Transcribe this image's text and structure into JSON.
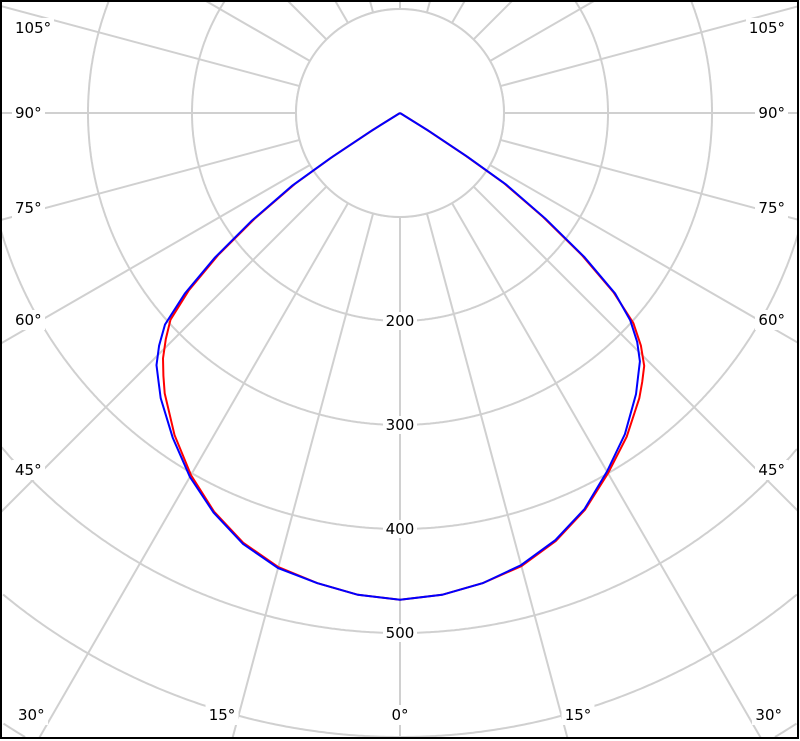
{
  "chart_data": {
    "type": "polar",
    "angle_unit": "degrees",
    "angle_ticks": [
      0,
      15,
      30,
      45,
      60,
      75,
      90,
      105
    ],
    "angle_tick_labels": [
      "0°",
      "15°",
      "30°",
      "45°",
      "60°",
      "75°",
      "90°",
      "105°"
    ],
    "radial_ticks": [
      200,
      300,
      400,
      500
    ],
    "radial_tick_labels": [
      "200",
      "300",
      "400",
      "500"
    ],
    "radial_grid": [
      100,
      200,
      300,
      400,
      500,
      600,
      700,
      800
    ],
    "grid": true,
    "grid_color": "#d0d0d0",
    "series": [
      {
        "color": "#ff0000",
        "gamma": [
          -90,
          -60,
          -58,
          -57,
          -56,
          -54,
          -52,
          -50,
          -48,
          -46,
          -44,
          -42,
          -40,
          -35,
          -30,
          -25,
          -20,
          -15,
          -10,
          -5,
          0,
          5,
          10,
          15,
          20,
          25,
          30,
          35,
          40,
          42,
          44,
          46,
          48,
          50,
          52,
          54,
          56,
          57,
          58,
          60,
          90
        ],
        "values": [
          0,
          0,
          30,
          75,
          120,
          170,
          222,
          268,
          302,
          322,
          338,
          348,
          358,
          380,
          400,
          421,
          438,
          451,
          459,
          465,
          468,
          465,
          459,
          452,
          440,
          423,
          402,
          378,
          352,
          340,
          328,
          313,
          297,
          265,
          222,
          172,
          122,
          77,
          30,
          0,
          0
        ]
      },
      {
        "color": "#0000ff",
        "gamma": [
          -90,
          -60,
          -58,
          -57,
          -56,
          -54,
          -52,
          -50,
          -48,
          -46,
          -44,
          -42,
          -40,
          -35,
          -30,
          -25,
          -20,
          -15,
          -10,
          -5,
          0,
          5,
          10,
          15,
          20,
          25,
          30,
          35,
          40,
          42,
          44,
          46,
          48,
          50,
          52,
          54,
          56,
          57,
          58,
          60,
          90
        ],
        "values": [
          0,
          0,
          32,
          78,
          123,
          173,
          225,
          270,
          298,
          317,
          332,
          342,
          353,
          377,
          398,
          420,
          437,
          450,
          459,
          465,
          468,
          465,
          459,
          453,
          441,
          424,
          404,
          381,
          358,
          347,
          337,
          322,
          304,
          270,
          226,
          176,
          125,
          80,
          32,
          0,
          0
        ]
      }
    ]
  }
}
